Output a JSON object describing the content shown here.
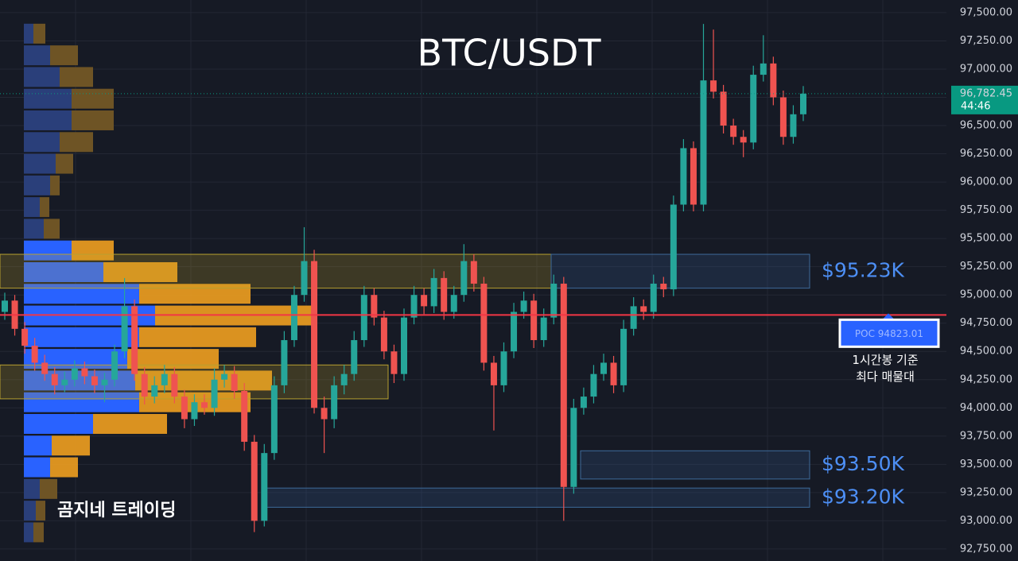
{
  "chart_data": {
    "type": "candlestick",
    "title": "BTC/USDT",
    "watermark": "곰지네 트레이딩",
    "up_color": "#26a69a",
    "down_color": "#ef5350",
    "ylim": [
      92644,
      97612
    ],
    "yticks": [
      {
        "value": 92750,
        "label": "92,750.00"
      },
      {
        "value": 93000,
        "label": "93,000.00"
      },
      {
        "value": 93250,
        "label": "93,250.00"
      },
      {
        "value": 93500,
        "label": "93,500.00"
      },
      {
        "value": 93750,
        "label": "93,750.00"
      },
      {
        "value": 94000,
        "label": "94,000.00"
      },
      {
        "value": 94250,
        "label": "94,250.00"
      },
      {
        "value": 94500,
        "label": "94,500.00"
      },
      {
        "value": 94750,
        "label": "94,750.00"
      },
      {
        "value": 95000,
        "label": "95,000.00"
      },
      {
        "value": 95250,
        "label": "95,250.00"
      },
      {
        "value": 95500,
        "label": "95,500.00"
      },
      {
        "value": 95750,
        "label": "95,750.00"
      },
      {
        "value": 96000,
        "label": "96,000.00"
      },
      {
        "value": 96250,
        "label": "96,250.00"
      },
      {
        "value": 96500,
        "label": "96,500.00"
      },
      {
        "value": 96750,
        "label": "96,750.00"
      },
      {
        "value": 97000,
        "label": "97,000.00"
      },
      {
        "value": 97250,
        "label": "97,250.00"
      },
      {
        "value": 97500,
        "label": "97,500.00"
      }
    ],
    "grid": true,
    "open": [
      94850,
      94950,
      94700,
      94550,
      94400,
      94300,
      94200,
      94250,
      94350,
      94280,
      94200,
      94250,
      94500,
      94900,
      94300,
      94100,
      94200,
      94300,
      94100,
      93900,
      94050,
      94000,
      94250,
      94300,
      94150,
      93700,
      93000,
      93600,
      94200,
      94600,
      95000,
      95300,
      94000,
      93900,
      94200,
      94300,
      94600,
      95000,
      94800,
      94500,
      94300,
      94800,
      95000,
      94900,
      95150,
      94850,
      95000,
      95300,
      95100,
      94400,
      94200,
      94500,
      94850,
      94950,
      94600,
      94800,
      95100,
      93300,
      94000,
      94100,
      94300,
      94400,
      94200,
      94700,
      94900,
      94850,
      95100,
      95050,
      95800,
      96300,
      95800,
      96900,
      96800,
      96500,
      96400,
      96350,
      96950,
      97050,
      96750,
      96400,
      96600
    ],
    "high": [
      95020,
      95000,
      94760,
      94620,
      94470,
      94360,
      94320,
      94420,
      94410,
      94340,
      94310,
      94560,
      95150,
      94960,
      94360,
      94280,
      94380,
      94360,
      94160,
      94120,
      94120,
      94350,
      94380,
      94370,
      94220,
      93760,
      93680,
      94280,
      94680,
      95080,
      95600,
      95400,
      94100,
      94280,
      94380,
      94680,
      95080,
      95060,
      94860,
      94560,
      94880,
      95080,
      95060,
      95230,
      95210,
      95080,
      95450,
      95360,
      95160,
      94460,
      94580,
      94930,
      95030,
      95010,
      94880,
      95180,
      95160,
      94080,
      94180,
      94380,
      94480,
      94460,
      94780,
      94980,
      94960,
      95180,
      95160,
      95880,
      96380,
      96360,
      97400,
      97350,
      96860,
      96560,
      96460,
      97030,
      97300,
      97110,
      96810,
      96680,
      96850
    ],
    "low": [
      94780,
      94640,
      94480,
      94330,
      94240,
      94120,
      94140,
      94190,
      94210,
      94130,
      94050,
      94190,
      94440,
      94240,
      94030,
      94040,
      94130,
      94040,
      93820,
      93840,
      93940,
      93930,
      94180,
      94080,
      93620,
      92900,
      92950,
      93540,
      94130,
      94540,
      94940,
      93950,
      93600,
      93820,
      94120,
      94240,
      94540,
      94730,
      94430,
      94220,
      94240,
      94740,
      94830,
      94840,
      94780,
      94790,
      94940,
      95030,
      94330,
      93800,
      94140,
      94440,
      94790,
      94530,
      94540,
      94740,
      93000,
      93240,
      93940,
      94040,
      94240,
      94130,
      94140,
      94640,
      94780,
      94790,
      94980,
      94990,
      95740,
      95740,
      95740,
      96740,
      96430,
      96330,
      96220,
      96290,
      96890,
      96680,
      96330,
      96340,
      96540
    ],
    "close": [
      94950,
      94700,
      94550,
      94400,
      94300,
      94200,
      94250,
      94350,
      94280,
      94200,
      94250,
      94500,
      94900,
      94300,
      94100,
      94200,
      94300,
      94100,
      93900,
      94050,
      94000,
      94250,
      94300,
      94150,
      93700,
      93000,
      93600,
      94200,
      94600,
      95000,
      95300,
      94000,
      93900,
      94200,
      94300,
      94600,
      95000,
      94800,
      94500,
      94300,
      94800,
      95000,
      94900,
      95150,
      94850,
      95000,
      95300,
      95100,
      94400,
      94200,
      94500,
      94850,
      94950,
      94600,
      94800,
      95100,
      93300,
      94000,
      94100,
      94300,
      94400,
      94200,
      94700,
      94900,
      94850,
      95100,
      95050,
      95800,
      96300,
      95800,
      96900,
      96800,
      96500,
      96400,
      96350,
      96950,
      97050,
      96750,
      96400,
      96600,
      96782.45
    ],
    "last_price": {
      "value": 96782.45,
      "label": "96,782.45",
      "countdown": "44:46",
      "color": "#089981"
    },
    "poc": {
      "value": 94823.01,
      "label": "POC  94823.01",
      "color": "#f23645",
      "note": [
        "1시간봉 기준",
        "최다 매물대"
      ]
    },
    "zones": [
      {
        "top": 95360,
        "bottom": 95060,
        "label": "$95.23K"
      },
      {
        "top": 94380,
        "bottom": 94080
      },
      {
        "top": 93620,
        "bottom": 93370,
        "label": "$93.50K"
      },
      {
        "top": 93290,
        "bottom": 93120,
        "label": "$93.20K"
      }
    ],
    "profile": {
      "price": [
        97314,
        97122,
        96930,
        96738,
        96546,
        96354,
        96162,
        95970,
        95778,
        95586,
        95394,
        95202,
        95010,
        94818,
        94626,
        94434,
        94242,
        94050,
        93858,
        93666,
        93474,
        93282,
        93090,
        92898
      ],
      "buy": [
        12,
        33,
        45,
        60,
        60,
        45,
        40,
        33,
        20,
        25,
        60,
        100,
        145,
        165,
        145,
        130,
        140,
        145,
        87,
        35,
        33,
        20,
        15,
        12
      ],
      "sell": [
        15,
        35,
        42,
        53,
        53,
        42,
        22,
        12,
        12,
        20,
        53,
        93,
        140,
        197,
        147,
        115,
        172,
        140,
        93,
        48,
        35,
        22,
        12,
        13
      ]
    }
  }
}
